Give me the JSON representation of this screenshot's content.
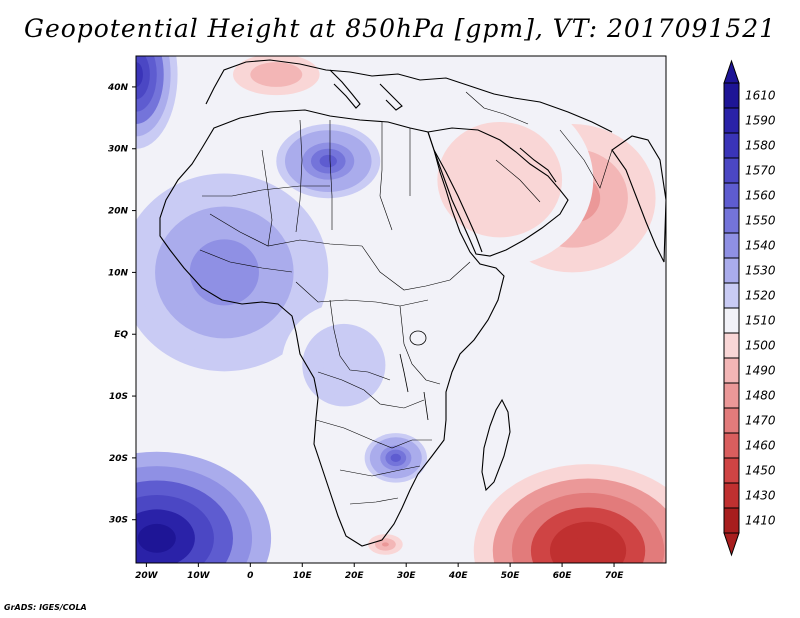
{
  "title": "Geopotential Height at 850hPa [gpm], VT: 2017091521",
  "credit": "GrADS: IGES/COLA",
  "map": {
    "lon_range": [
      -22,
      80
    ],
    "lat_range": [
      -37,
      45
    ],
    "x_ticks": [
      {
        "lon": -20,
        "label": "20W"
      },
      {
        "lon": -10,
        "label": "10W"
      },
      {
        "lon": 0,
        "label": "0"
      },
      {
        "lon": 10,
        "label": "10E"
      },
      {
        "lon": 20,
        "label": "20E"
      },
      {
        "lon": 30,
        "label": "30E"
      },
      {
        "lon": 40,
        "label": "40E"
      },
      {
        "lon": 50,
        "label": "50E"
      },
      {
        "lon": 60,
        "label": "60E"
      },
      {
        "lon": 70,
        "label": "70E"
      }
    ],
    "y_ticks": [
      {
        "lat": 40,
        "label": "40N"
      },
      {
        "lat": 30,
        "label": "30N"
      },
      {
        "lat": 20,
        "label": "20N"
      },
      {
        "lat": 10,
        "label": "10N"
      },
      {
        "lat": 0,
        "label": "EQ"
      },
      {
        "lat": -10,
        "label": "10S"
      },
      {
        "lat": -20,
        "label": "20S"
      },
      {
        "lat": -30,
        "label": "30S"
      }
    ]
  },
  "colorbar": {
    "levels": [
      {
        "label": "1610",
        "color": "#1e1596"
      },
      {
        "label": "1590",
        "color": "#2a22a8"
      },
      {
        "label": "1580",
        "color": "#3a34b8"
      },
      {
        "label": "1570",
        "color": "#4b47c4"
      },
      {
        "label": "1560",
        "color": "#5e5cd0"
      },
      {
        "label": "1550",
        "color": "#7474da"
      },
      {
        "label": "1540",
        "color": "#8f90e4"
      },
      {
        "label": "1530",
        "color": "#aaacec"
      },
      {
        "label": "1520",
        "color": "#c9cbf4"
      },
      {
        "label": "1510",
        "color": "#f2f2f8"
      },
      {
        "label": "1500",
        "color": "#f9d6d6"
      },
      {
        "label": "1490",
        "color": "#f3b6b6"
      },
      {
        "label": "1480",
        "color": "#eb9898"
      },
      {
        "label": "1470",
        "color": "#e27b7b"
      },
      {
        "label": "1460",
        "color": "#d95e5e"
      },
      {
        "label": "1450",
        "color": "#cf4444"
      },
      {
        "label": "1430",
        "color": "#c03030"
      },
      {
        "label": "1410",
        "color": "#a81e1e"
      }
    ],
    "top_arrow_color": "#1e1596",
    "bottom_arrow_color": "#a81e1e"
  },
  "field": {
    "background_value": 1510,
    "features": [
      {
        "name": "southeast-high",
        "lon": 65,
        "lat": -35,
        "rx": 22,
        "ry": 14,
        "value": 1425
      },
      {
        "name": "arabian-low",
        "lon": 62,
        "lat": 22,
        "rx": 16,
        "ry": 12,
        "value": 1478
      },
      {
        "name": "iberia-heat-low",
        "lon": 5,
        "lat": 42,
        "rx": 10,
        "ry": 4,
        "value": 1485
      },
      {
        "name": "mideast-trough",
        "lon": 48,
        "lat": 25,
        "rx": 18,
        "ry": 14,
        "value": 1495
      },
      {
        "name": "southwest-atlantic-high",
        "lon": -18,
        "lat": -33,
        "rx": 22,
        "ry": 14,
        "value": 1600
      },
      {
        "name": "northwest-atlantic-high",
        "lon": -22,
        "lat": 42,
        "rx": 8,
        "ry": 12,
        "value": 1580
      },
      {
        "name": "west-africa-plateau",
        "lon": -5,
        "lat": 10,
        "rx": 20,
        "ry": 16,
        "value": 1540
      },
      {
        "name": "sahara-ridge",
        "lon": 15,
        "lat": 28,
        "rx": 10,
        "ry": 6,
        "value": 1555
      },
      {
        "name": "southern-africa-ridge",
        "lon": 28,
        "lat": -20,
        "rx": 6,
        "ry": 4,
        "value": 1555
      },
      {
        "name": "central-africa",
        "lon": 18,
        "lat": -5,
        "rx": 12,
        "ry": 10,
        "value": 1522
      },
      {
        "name": "east-africa",
        "lon": 35,
        "lat": 5,
        "rx": 6,
        "ry": 10,
        "value": 1512
      },
      {
        "name": "cape-low",
        "lon": 26,
        "lat": -34,
        "rx": 4,
        "ry": 2,
        "value": 1480
      }
    ]
  }
}
